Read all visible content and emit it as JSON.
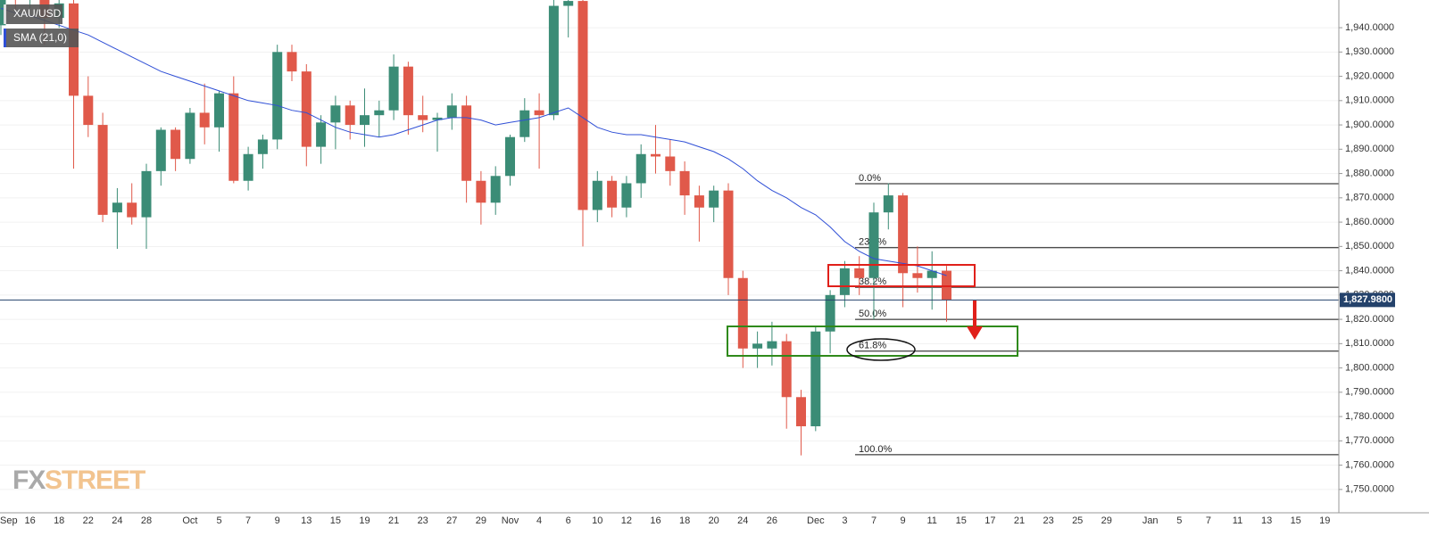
{
  "chart_data": {
    "type": "candlestick",
    "symbol": "XAU/USD",
    "watermark": [
      "FX",
      "STREET"
    ],
    "up_color": "#3b8c76",
    "down_color": "#e0594a",
    "grid": true,
    "ylim": [
      1740.4,
      1951.4
    ],
    "yticks": [
      {
        "value": 1750,
        "label": "1,750.0000"
      },
      {
        "value": 1760,
        "label": "1,760.0000"
      },
      {
        "value": 1770,
        "label": "1,770.0000"
      },
      {
        "value": 1780,
        "label": "1,780.0000"
      },
      {
        "value": 1790,
        "label": "1,790.0000"
      },
      {
        "value": 1800,
        "label": "1,800.0000"
      },
      {
        "value": 1810,
        "label": "1,810.0000"
      },
      {
        "value": 1820,
        "label": "1,820.0000"
      },
      {
        "value": 1830,
        "label": "1,830.0000"
      },
      {
        "value": 1840,
        "label": "1,840.0000"
      },
      {
        "value": 1850,
        "label": "1,850.0000"
      },
      {
        "value": 1860,
        "label": "1,860.0000"
      },
      {
        "value": 1870,
        "label": "1,870.0000"
      },
      {
        "value": 1880,
        "label": "1,880.0000"
      },
      {
        "value": 1890,
        "label": "1,890.0000"
      },
      {
        "value": 1900,
        "label": "1,900.0000"
      },
      {
        "value": 1910,
        "label": "1,910.0000"
      },
      {
        "value": 1920,
        "label": "1,920.0000"
      },
      {
        "value": 1930,
        "label": "1,930.0000"
      },
      {
        "value": 1940,
        "label": "1,940.0000"
      }
    ],
    "categories": [
      "Sep",
      null,
      "16",
      null,
      "18",
      null,
      "22",
      null,
      "24",
      null,
      "28",
      null,
      null,
      "Oct",
      null,
      "5",
      null,
      "7",
      null,
      "9",
      null,
      "13",
      null,
      "15",
      null,
      "19",
      null,
      "21",
      null,
      "23",
      null,
      "27",
      null,
      "29",
      null,
      "Nov",
      null,
      "4",
      null,
      "6",
      null,
      "10",
      null,
      "12",
      null,
      "16",
      null,
      "18",
      null,
      "20",
      null,
      "24",
      null,
      "26",
      null,
      null,
      "Dec",
      null,
      "3",
      null,
      "7",
      null,
      "9",
      null,
      "11",
      null,
      "15",
      null,
      "17",
      null,
      "21",
      null,
      "23",
      null,
      "25",
      null,
      "29",
      null,
      null,
      "Jan",
      null,
      "5",
      null,
      "7",
      null,
      "11",
      null,
      "13",
      null,
      "15",
      null,
      "19"
    ],
    "open": [
      1941,
      1956,
      1954,
      1961,
      1944,
      1950,
      1912,
      1900,
      1864,
      1868,
      1862,
      1881,
      1898,
      1886,
      1905,
      1899,
      1913,
      1877,
      1888,
      1894,
      1930,
      1922,
      1891,
      1901,
      1908,
      1900,
      1904,
      1906,
      1924,
      1904,
      1902,
      1903,
      1908,
      1877,
      1868,
      1879,
      1895,
      1906,
      1904,
      1949,
      1951,
      1865,
      1877,
      1866,
      1876,
      1888,
      1887,
      1881,
      1871,
      1866,
      1873,
      1837,
      1808,
      1808,
      1811,
      1788,
      1776,
      1815,
      1830,
      1841,
      1837,
      1864,
      1871,
      1839,
      1837,
      1840,
      null,
      null,
      null,
      null,
      null,
      null,
      null,
      null,
      null,
      null,
      null,
      null,
      null,
      null,
      null,
      null,
      null,
      null,
      null,
      null,
      null,
      null,
      null,
      null,
      null,
      null
    ],
    "high": [
      1960,
      1962,
      1966,
      1962,
      1955,
      1955,
      1920,
      1905,
      1874,
      1876,
      1884,
      1899,
      1899,
      1907,
      1917,
      1914,
      1920,
      1891,
      1896,
      1933,
      1933,
      1925,
      1904,
      1912,
      1910,
      1915,
      1910,
      1929,
      1926,
      1912,
      1905,
      1913,
      1912,
      1881,
      1883,
      1896,
      1911,
      1913,
      1952,
      1962,
      1965,
      1881,
      1879,
      1879,
      1892,
      1900,
      1894,
      1885,
      1875,
      1875,
      1876,
      1840,
      1815,
      1819,
      1814,
      1791,
      1817,
      1832,
      1844,
      1846,
      1868,
      1876,
      1872,
      1850,
      1848,
      1842,
      null,
      null,
      null,
      null,
      null,
      null,
      null,
      null,
      null,
      null,
      null,
      null,
      null,
      null,
      null,
      null,
      null,
      null,
      null,
      null,
      null,
      null,
      null,
      null,
      null,
      null
    ],
    "low": [
      1937,
      1947,
      1948,
      1933,
      1940,
      1882,
      1895,
      1860,
      1849,
      1859,
      1849,
      1875,
      1881,
      1884,
      1892,
      1889,
      1876,
      1873,
      1882,
      1890,
      1918,
      1883,
      1884,
      1890,
      1894,
      1891,
      1895,
      1902,
      1896,
      1897,
      1889,
      1898,
      1868,
      1859,
      1863,
      1875,
      1893,
      1882,
      1902,
      1936,
      1850,
      1860,
      1862,
      1862,
      1870,
      1880,
      1875,
      1863,
      1852,
      1860,
      1830,
      1800,
      1800,
      1801,
      1775,
      1764,
      1774,
      1806,
      1825,
      1830,
      1820,
      1857,
      1825,
      1831,
      1824,
      1819,
      null,
      null,
      null,
      null,
      null,
      null,
      null,
      null,
      null,
      null,
      null,
      null,
      null,
      null,
      null,
      null,
      null,
      null,
      null,
      null,
      null,
      null,
      null,
      null,
      null,
      null
    ],
    "close": [
      1956,
      1954,
      1961,
      1944,
      1950,
      1912,
      1900,
      1863,
      1868,
      1862,
      1881,
      1898,
      1886,
      1905,
      1899,
      1913,
      1877,
      1888,
      1894,
      1930,
      1922,
      1891,
      1901,
      1908,
      1900,
      1904,
      1906,
      1924,
      1904,
      1902,
      1903,
      1908,
      1877,
      1868,
      1879,
      1895,
      1906,
      1904,
      1949,
      1951,
      1865,
      1877,
      1866,
      1876,
      1888,
      1887,
      1881,
      1871,
      1866,
      1873,
      1837,
      1808,
      1810,
      1811,
      1788,
      1776,
      1815,
      1830,
      1841,
      1837,
      1864,
      1871,
      1839,
      1837,
      1840,
      1827.98,
      null,
      null,
      null,
      null,
      null,
      null,
      null,
      null,
      null,
      null,
      null,
      null,
      null,
      null,
      null,
      null,
      null,
      null,
      null,
      null,
      null,
      null,
      null,
      null,
      null,
      null
    ],
    "sma": {
      "name": "SMA (21,0)",
      "color": "#2f4fd6",
      "values": [
        1948,
        1946,
        1945,
        1943,
        1941,
        1939,
        1937,
        1934,
        1931,
        1928,
        1925,
        1922,
        1920,
        1918,
        1916,
        1914,
        1912,
        1910,
        1909,
        1908,
        1906,
        1905,
        1902,
        1899,
        1897,
        1896,
        1895,
        1896,
        1898,
        1900,
        1902,
        1903,
        1903,
        1902,
        1900,
        1901,
        1902,
        1903,
        1905,
        1907,
        1903,
        1899,
        1897,
        1896,
        1896,
        1895,
        1894,
        1893,
        1891,
        1889,
        1886,
        1882,
        1877,
        1873,
        1870,
        1866,
        1863,
        1858,
        1852,
        1848,
        1845,
        1844,
        1843,
        1842,
        1840,
        1838,
        null,
        null,
        null,
        null,
        null,
        null,
        null,
        null,
        null,
        null,
        null,
        null,
        null,
        null,
        null,
        null,
        null,
        null,
        null,
        null,
        null,
        null,
        null,
        null,
        null,
        null
      ]
    },
    "fib_levels": [
      {
        "label": "0.0%",
        "value": 1875.8
      },
      {
        "label": "23.6%",
        "value": 1849.5
      },
      {
        "label": "38.2%",
        "value": 1833.2
      },
      {
        "label": "50.0%",
        "value": 1820.0
      },
      {
        "label": "61.8%",
        "value": 1806.9
      },
      {
        "label": "100.0%",
        "value": 1764.3
      }
    ],
    "last_price": {
      "value": 1827.98,
      "label": "1,827.9800"
    }
  }
}
